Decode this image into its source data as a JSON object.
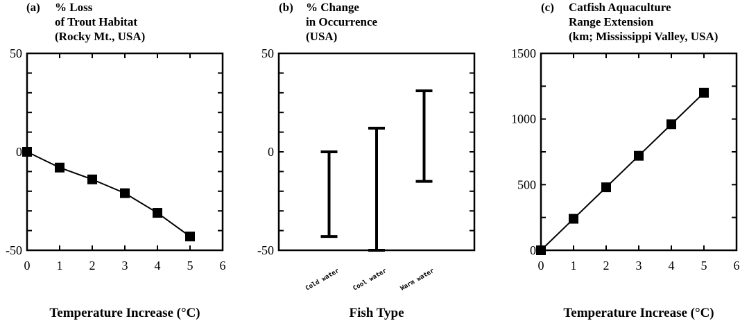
{
  "chart_data": [
    {
      "type": "line",
      "panel_letter": "(a)",
      "title_lines": [
        "% Loss",
        "of Trout Habitat",
        "(Rocky Mt., USA)"
      ],
      "xlabel": "Temperature Increase (°C)",
      "ylabel": "",
      "x": [
        0,
        1,
        2,
        3,
        4,
        5
      ],
      "series": [
        {
          "values": [
            0,
            -8,
            -14,
            -21,
            -31,
            -43
          ]
        }
      ],
      "xlim": [
        0,
        6
      ],
      "ylim": [
        -50,
        50
      ],
      "xticks": [
        "0",
        "1",
        "2",
        "3",
        "4",
        "5",
        "6"
      ],
      "yticks": [
        "50",
        "0",
        "-50"
      ],
      "marker": "square"
    },
    {
      "type": "errorbar",
      "panel_letter": "(b)",
      "title_lines": [
        "% Change",
        "in Occurrence",
        "(USA)"
      ],
      "xlabel": "Fish Type",
      "ylabel": "",
      "categories": [
        "Cold water",
        "Cool water",
        "Warm water"
      ],
      "ranges": [
        {
          "low": -43,
          "high": 0
        },
        {
          "low": -50,
          "high": 12
        },
        {
          "low": -15,
          "high": 31
        }
      ],
      "ylim": [
        -50,
        50
      ],
      "yticks": [
        "50",
        "0",
        "-50"
      ]
    },
    {
      "type": "line",
      "panel_letter": "(c)",
      "title_lines": [
        "Catfish Aquaculture",
        "Range Extension",
        "(km; Mississippi Valley, USA)"
      ],
      "xlabel": "Temperature Increase (°C)",
      "ylabel": "",
      "x": [
        0,
        1,
        2,
        3,
        4,
        5
      ],
      "series": [
        {
          "values": [
            0,
            240,
            480,
            720,
            960,
            1200
          ]
        }
      ],
      "xlim": [
        0,
        6
      ],
      "ylim": [
        0,
        1500
      ],
      "xticks": [
        "0",
        "1",
        "2",
        "3",
        "4",
        "5",
        "6"
      ],
      "yticks": [
        "1500",
        "1000",
        "500",
        "0"
      ],
      "marker": "square"
    }
  ]
}
